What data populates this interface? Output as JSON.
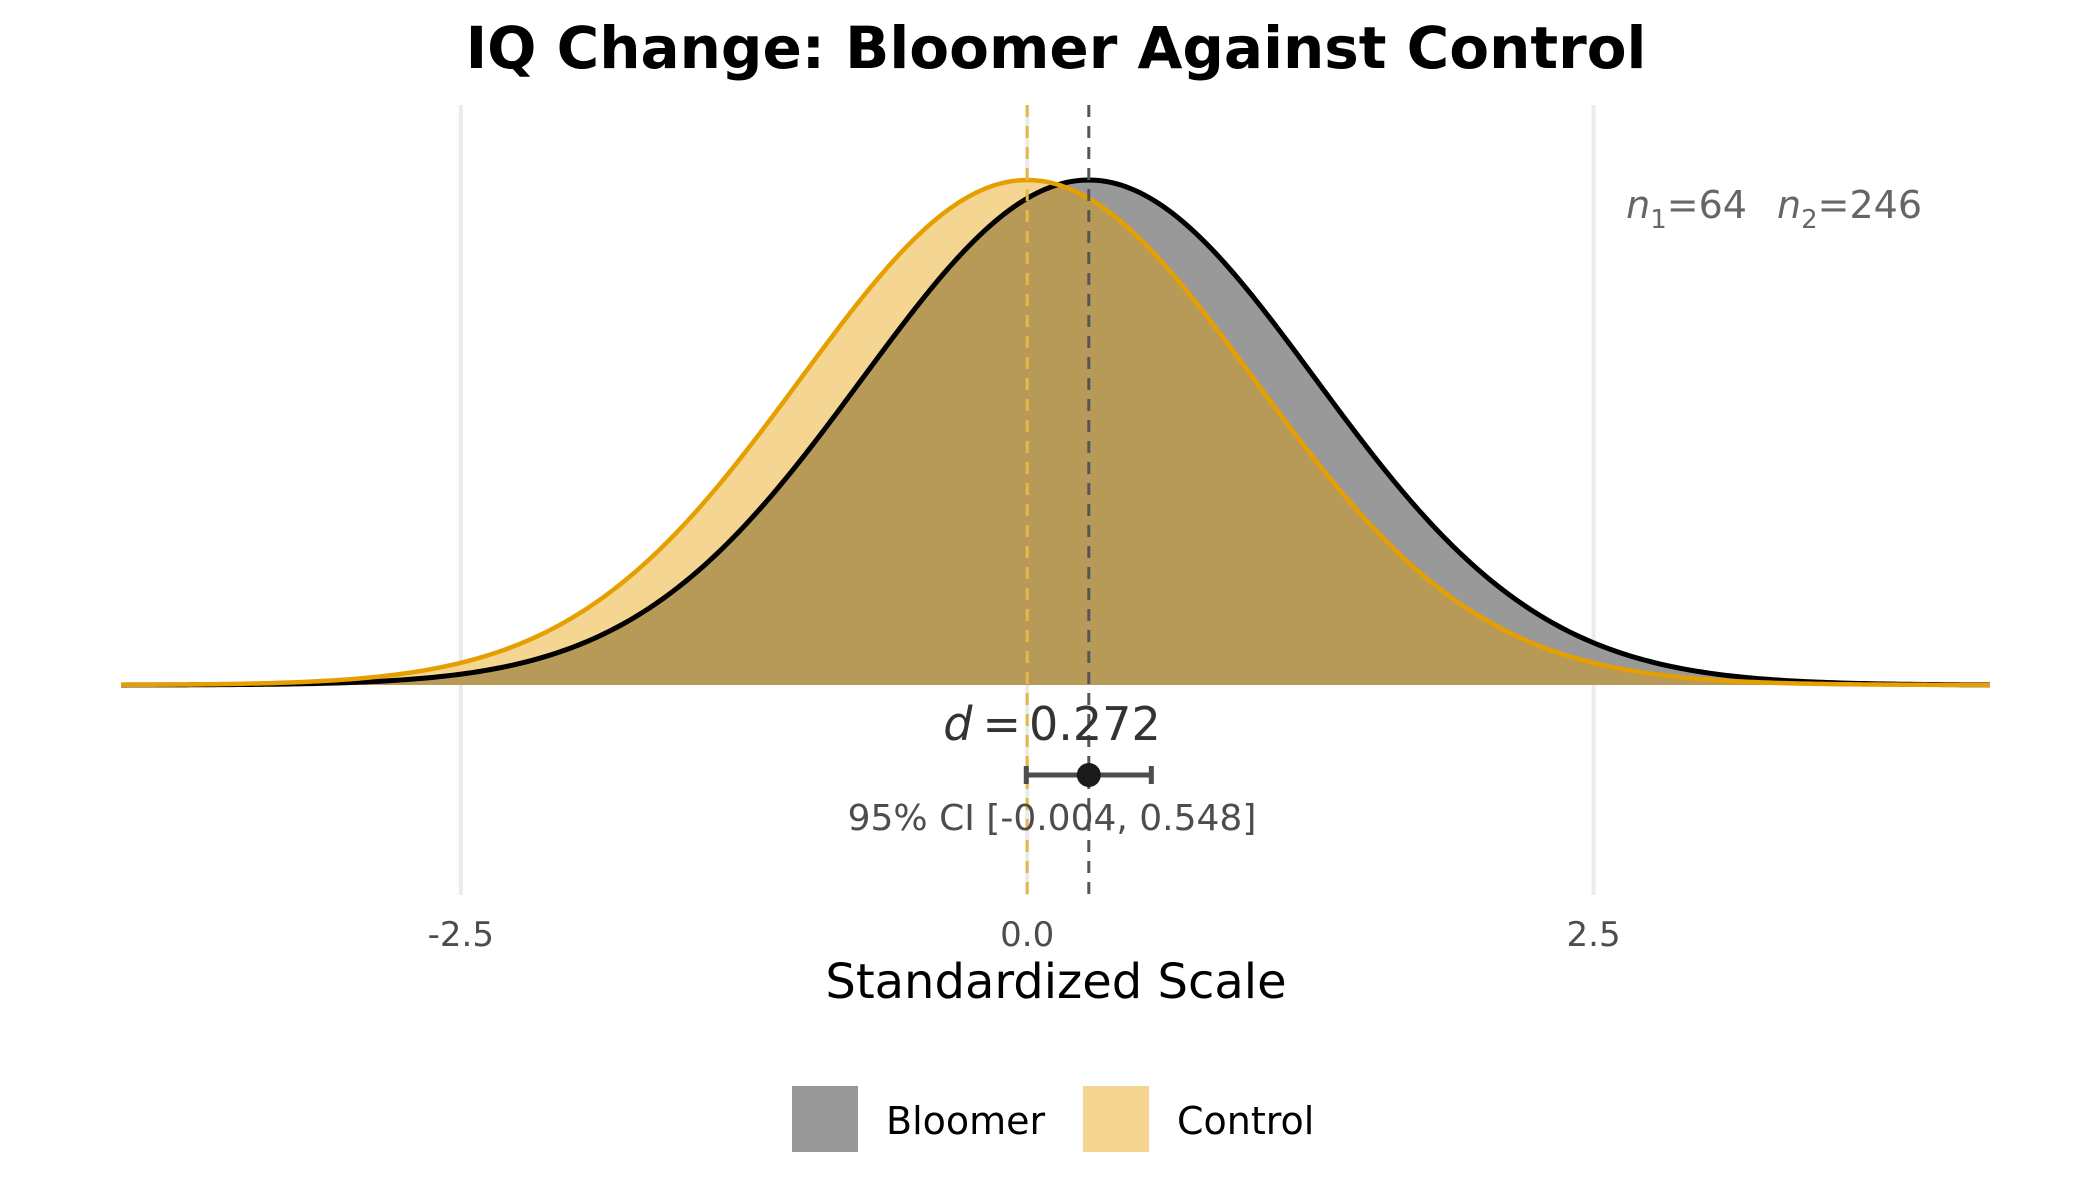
{
  "chart_data": {
    "type": "area",
    "title": "IQ Change: Bloomer Against Control",
    "xlabel": "Standardized Scale",
    "ylabel": "",
    "xlim": [
      -4,
      4.25
    ],
    "x_ticks": [
      {
        "value": -2.5,
        "label": "-2.5"
      },
      {
        "value": 0.0,
        "label": "0.0"
      },
      {
        "value": 2.5,
        "label": "2.5"
      }
    ],
    "grid": "vertical major only",
    "series": [
      {
        "name": "Bloomer",
        "distribution": "normal",
        "mean": 0.272,
        "sd": 1,
        "fill": "#999999",
        "line": "#000000"
      },
      {
        "name": "Control",
        "distribution": "normal",
        "mean": 0.0,
        "sd": 1,
        "fill": "#F5D592",
        "line": "#E69F00"
      }
    ],
    "effect_size": {
      "symbol": "d",
      "equals": "=",
      "value_text": "0.272",
      "value": 0.272,
      "ci_low": -0.004,
      "ci_high": 0.548,
      "ci_text": "95% CI [-0.004, 0.548]"
    },
    "sample_sizes": {
      "n1_symbol": "n",
      "n1_sub": "1",
      "n1_value": "=64",
      "n2_symbol": "n",
      "n2_sub": "2",
      "n2_value": "=246"
    },
    "legend": {
      "placement": "bottom",
      "entries": [
        {
          "label": "Bloomer",
          "color": "#999999"
        },
        {
          "label": "Control",
          "color": "#F5D592"
        }
      ]
    }
  }
}
